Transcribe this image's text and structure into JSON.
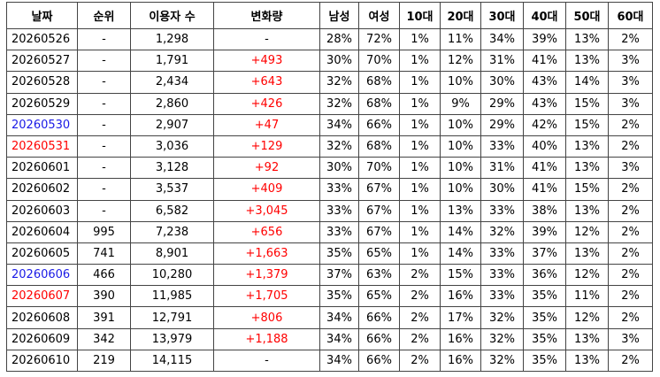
{
  "table": {
    "header": [
      "날짜",
      "순위",
      "이용자 수",
      "변화량",
      "남성",
      "여성",
      "10대",
      "20대",
      "30대",
      "40대",
      "50대",
      "60대"
    ],
    "text_color": "#000000",
    "change_color": "#ff0000",
    "rows": [
      {
        "cells": [
          "20260526",
          "-",
          "1,298",
          "-",
          "28%",
          "72%",
          "1%",
          "11%",
          "34%",
          "39%",
          "13%",
          "2%"
        ]
      },
      {
        "cells": [
          "20260527",
          "-",
          "1,791",
          "+493",
          "30%",
          "70%",
          "1%",
          "12%",
          "31%",
          "41%",
          "13%",
          "3%"
        ]
      },
      {
        "cells": [
          "20260528",
          "-",
          "2,434",
          "+643",
          "32%",
          "68%",
          "1%",
          "10%",
          "30%",
          "43%",
          "14%",
          "3%"
        ]
      },
      {
        "cells": [
          "20260529",
          "-",
          "2,860",
          "+426",
          "32%",
          "68%",
          "1%",
          "9%",
          "29%",
          "43%",
          "15%",
          "3%"
        ]
      },
      {
        "cells": [
          "20260530",
          "-",
          "2,907",
          "+47",
          "34%",
          "66%",
          "1%",
          "10%",
          "29%",
          "42%",
          "15%",
          "2%"
        ],
        "date_color": "#1a1ae6"
      },
      {
        "cells": [
          "20260531",
          "-",
          "3,036",
          "+129",
          "32%",
          "68%",
          "1%",
          "10%",
          "33%",
          "40%",
          "13%",
          "2%"
        ],
        "date_color": "#ff0000"
      },
      {
        "cells": [
          "20260601",
          "-",
          "3,128",
          "+92",
          "30%",
          "70%",
          "1%",
          "10%",
          "31%",
          "41%",
          "13%",
          "3%"
        ]
      },
      {
        "cells": [
          "20260602",
          "-",
          "3,537",
          "+409",
          "33%",
          "67%",
          "1%",
          "10%",
          "30%",
          "41%",
          "15%",
          "2%"
        ]
      },
      {
        "cells": [
          "20260603",
          "-",
          "6,582",
          "+3,045",
          "33%",
          "67%",
          "1%",
          "13%",
          "33%",
          "38%",
          "13%",
          "2%"
        ]
      },
      {
        "cells": [
          "20260604",
          "995",
          "7,238",
          "+656",
          "33%",
          "67%",
          "1%",
          "14%",
          "32%",
          "39%",
          "12%",
          "2%"
        ]
      },
      {
        "cells": [
          "20260605",
          "741",
          "8,901",
          "+1,663",
          "35%",
          "65%",
          "1%",
          "14%",
          "33%",
          "37%",
          "13%",
          "2%"
        ]
      },
      {
        "cells": [
          "20260606",
          "466",
          "10,280",
          "+1,379",
          "37%",
          "63%",
          "2%",
          "15%",
          "33%",
          "36%",
          "12%",
          "2%"
        ],
        "date_color": "#1a1ae6"
      },
      {
        "cells": [
          "20260607",
          "390",
          "11,985",
          "+1,705",
          "35%",
          "65%",
          "2%",
          "16%",
          "33%",
          "35%",
          "11%",
          "2%"
        ],
        "date_color": "#ff0000"
      },
      {
        "cells": [
          "20260608",
          "391",
          "12,791",
          "+806",
          "34%",
          "66%",
          "2%",
          "17%",
          "32%",
          "35%",
          "12%",
          "2%"
        ]
      },
      {
        "cells": [
          "20260609",
          "342",
          "13,979",
          "+1,188",
          "34%",
          "66%",
          "2%",
          "16%",
          "32%",
          "35%",
          "13%",
          "3%"
        ]
      },
      {
        "cells": [
          "20260610",
          "219",
          "14,115",
          "-",
          "34%",
          "66%",
          "2%",
          "16%",
          "32%",
          "35%",
          "13%",
          "2%"
        ]
      }
    ]
  }
}
